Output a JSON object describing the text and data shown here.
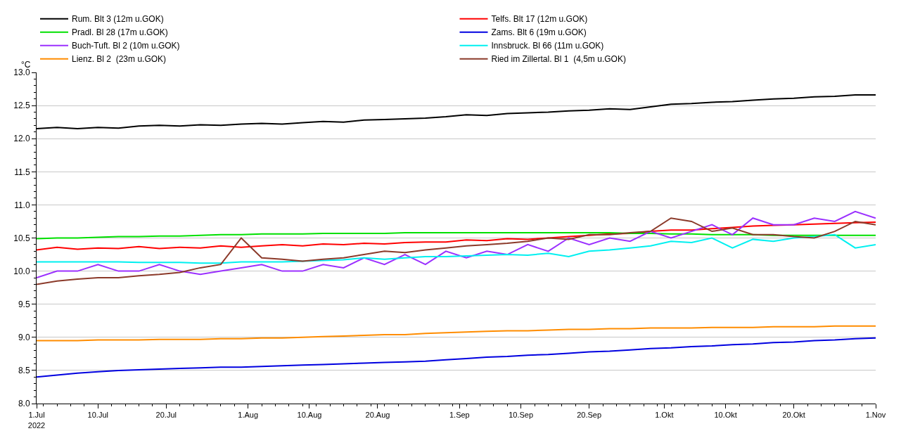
{
  "chart_data": {
    "type": "line",
    "ylabel": "°C",
    "x": [
      "2022-07-01",
      "2022-07-04",
      "2022-07-07",
      "2022-07-10",
      "2022-07-13",
      "2022-07-16",
      "2022-07-19",
      "2022-07-22",
      "2022-07-25",
      "2022-07-28",
      "2022-07-31",
      "2022-08-03",
      "2022-08-06",
      "2022-08-09",
      "2022-08-12",
      "2022-08-15",
      "2022-08-18",
      "2022-08-21",
      "2022-08-24",
      "2022-08-27",
      "2022-08-30",
      "2022-09-02",
      "2022-09-05",
      "2022-09-08",
      "2022-09-11",
      "2022-09-14",
      "2022-09-17",
      "2022-09-20",
      "2022-09-23",
      "2022-09-26",
      "2022-09-29",
      "2022-10-02",
      "2022-10-05",
      "2022-10-08",
      "2022-10-11",
      "2022-10-14",
      "2022-10-17",
      "2022-10-20",
      "2022-10-23",
      "2022-10-26",
      "2022-10-29",
      "2022-11-01"
    ],
    "series": [
      {
        "name": "Rum. Blt 3 (12m u.GOK)",
        "color": "#000000",
        "values": [
          12.15,
          12.17,
          12.15,
          12.17,
          12.16,
          12.19,
          12.2,
          12.19,
          12.21,
          12.2,
          12.22,
          12.23,
          12.22,
          12.24,
          12.26,
          12.25,
          12.28,
          12.29,
          12.3,
          12.31,
          12.33,
          12.36,
          12.35,
          12.38,
          12.39,
          12.4,
          12.42,
          12.43,
          12.45,
          12.44,
          12.48,
          12.52,
          12.53,
          12.55,
          12.56,
          12.58,
          12.6,
          12.61,
          12.63,
          12.64,
          12.66,
          12.66
        ]
      },
      {
        "name": "Telfs. Blt 17 (12m u.GOK)",
        "color": "#ff0000",
        "values": [
          10.32,
          10.36,
          10.33,
          10.35,
          10.34,
          10.37,
          10.34,
          10.36,
          10.35,
          10.38,
          10.36,
          10.38,
          10.4,
          10.38,
          10.41,
          10.4,
          10.42,
          10.41,
          10.43,
          10.44,
          10.44,
          10.47,
          10.46,
          10.49,
          10.48,
          10.5,
          10.52,
          10.54,
          10.56,
          10.57,
          10.6,
          10.62,
          10.62,
          10.64,
          10.66,
          10.68,
          10.69,
          10.7,
          10.71,
          10.72,
          10.73,
          10.74
        ]
      },
      {
        "name": "Pradl. Bl 28 (17m u.GOK)",
        "color": "#00e000",
        "values": [
          10.49,
          10.5,
          10.5,
          10.51,
          10.52,
          10.52,
          10.53,
          10.53,
          10.54,
          10.55,
          10.55,
          10.56,
          10.56,
          10.56,
          10.57,
          10.57,
          10.57,
          10.57,
          10.58,
          10.58,
          10.58,
          10.58,
          10.58,
          10.58,
          10.58,
          10.58,
          10.58,
          10.58,
          10.58,
          10.57,
          10.57,
          10.56,
          10.56,
          10.55,
          10.55,
          10.55,
          10.54,
          10.54,
          10.54,
          10.54,
          10.54,
          10.54
        ]
      },
      {
        "name": "Zams. Blt 6 (19m u.GOK)",
        "color": "#0000e0",
        "values": [
          8.4,
          8.43,
          8.46,
          8.48,
          8.5,
          8.51,
          8.52,
          8.53,
          8.54,
          8.55,
          8.55,
          8.56,
          8.57,
          8.58,
          8.59,
          8.6,
          8.61,
          8.62,
          8.63,
          8.64,
          8.66,
          8.68,
          8.7,
          8.71,
          8.73,
          8.74,
          8.76,
          8.78,
          8.79,
          8.81,
          8.83,
          8.84,
          8.86,
          8.87,
          8.89,
          8.9,
          8.92,
          8.93,
          8.95,
          8.96,
          8.98,
          8.99
        ]
      },
      {
        "name": "Buch-Tuft. Bl 2 (10m u.GOK)",
        "color": "#9b30ff",
        "values": [
          9.9,
          10.0,
          10.0,
          10.1,
          10.0,
          10.0,
          10.1,
          10.0,
          9.95,
          10.0,
          10.05,
          10.1,
          10.0,
          10.0,
          10.1,
          10.05,
          10.2,
          10.1,
          10.25,
          10.1,
          10.3,
          10.2,
          10.3,
          10.25,
          10.4,
          10.3,
          10.5,
          10.4,
          10.5,
          10.45,
          10.6,
          10.5,
          10.6,
          10.7,
          10.55,
          10.8,
          10.7,
          10.7,
          10.8,
          10.75,
          10.9,
          10.8
        ]
      },
      {
        "name": "Innsbruck. Bl 66 (11m u.GOK)",
        "color": "#00f0f0",
        "values": [
          10.14,
          10.14,
          10.14,
          10.14,
          10.14,
          10.13,
          10.13,
          10.13,
          10.12,
          10.12,
          10.14,
          10.14,
          10.14,
          10.15,
          10.16,
          10.17,
          10.2,
          10.18,
          10.2,
          10.22,
          10.22,
          10.23,
          10.24,
          10.25,
          10.24,
          10.27,
          10.22,
          10.3,
          10.32,
          10.35,
          10.38,
          10.45,
          10.43,
          10.5,
          10.35,
          10.48,
          10.45,
          10.5,
          10.52,
          10.55,
          10.35,
          10.4
        ]
      },
      {
        "name": "Lienz. Bl 2  (23m u.GOK)",
        "color": "#ff8c00",
        "values": [
          8.95,
          8.95,
          8.95,
          8.96,
          8.96,
          8.96,
          8.97,
          8.97,
          8.97,
          8.98,
          8.98,
          8.99,
          8.99,
          9.0,
          9.01,
          9.02,
          9.03,
          9.04,
          9.04,
          9.06,
          9.07,
          9.08,
          9.09,
          9.1,
          9.1,
          9.11,
          9.12,
          9.12,
          9.13,
          9.13,
          9.14,
          9.14,
          9.14,
          9.15,
          9.15,
          9.15,
          9.16,
          9.16,
          9.16,
          9.17,
          9.17,
          9.17
        ]
      },
      {
        "name": "Ried im Zillertal. Bl 1  (4,5m u.GOK)",
        "color": "#8b3a2a",
        "values": [
          9.8,
          9.85,
          9.88,
          9.9,
          9.9,
          9.93,
          9.95,
          9.98,
          10.05,
          10.1,
          10.5,
          10.2,
          10.18,
          10.15,
          10.18,
          10.2,
          10.25,
          10.3,
          10.28,
          10.32,
          10.35,
          10.38,
          10.4,
          10.42,
          10.45,
          10.5,
          10.48,
          10.55,
          10.55,
          10.58,
          10.6,
          10.8,
          10.75,
          10.6,
          10.65,
          10.55,
          10.55,
          10.52,
          10.5,
          10.6,
          10.75,
          10.7
        ]
      }
    ],
    "xlim": [
      "2022-07-01",
      "2022-11-01"
    ],
    "xticks": [
      {
        "value": "2022-07-01",
        "label": "1.Jul\n2022"
      },
      {
        "value": "2022-07-10",
        "label": "10.Jul"
      },
      {
        "value": "2022-07-20",
        "label": "20.Jul"
      },
      {
        "value": "2022-08-01",
        "label": "1.Aug"
      },
      {
        "value": "2022-08-10",
        "label": "10.Aug"
      },
      {
        "value": "2022-08-20",
        "label": "20.Aug"
      },
      {
        "value": "2022-09-01",
        "label": "1.Sep"
      },
      {
        "value": "2022-09-10",
        "label": "10.Sep"
      },
      {
        "value": "2022-09-20",
        "label": "20.Sep"
      },
      {
        "value": "2022-10-01",
        "label": "1.Okt"
      },
      {
        "value": "2022-10-10",
        "label": "10.Okt"
      },
      {
        "value": "2022-10-20",
        "label": "20.Okt"
      },
      {
        "value": "2022-11-01",
        "label": "1.Nov"
      }
    ],
    "ylim": [
      8.0,
      13.0
    ],
    "yticks": [
      {
        "value": 8,
        "label": "8.0"
      },
      {
        "value": 8.5,
        "label": "8.5"
      },
      {
        "value": 9,
        "label": "9.0"
      },
      {
        "value": 9.5,
        "label": "9.5"
      },
      {
        "value": 10,
        "label": "10.0"
      },
      {
        "value": 10.5,
        "label": "10.5"
      },
      {
        "value": 11,
        "label": "11.0"
      },
      {
        "value": 11.5,
        "label": "11.5"
      },
      {
        "value": 12,
        "label": "12.0"
      },
      {
        "value": 12.5,
        "label": "12.5"
      },
      {
        "value": 13,
        "label": "13.0"
      }
    ],
    "grid": "y",
    "legend": "top",
    "marker": "none",
    "line_style": "solid"
  }
}
